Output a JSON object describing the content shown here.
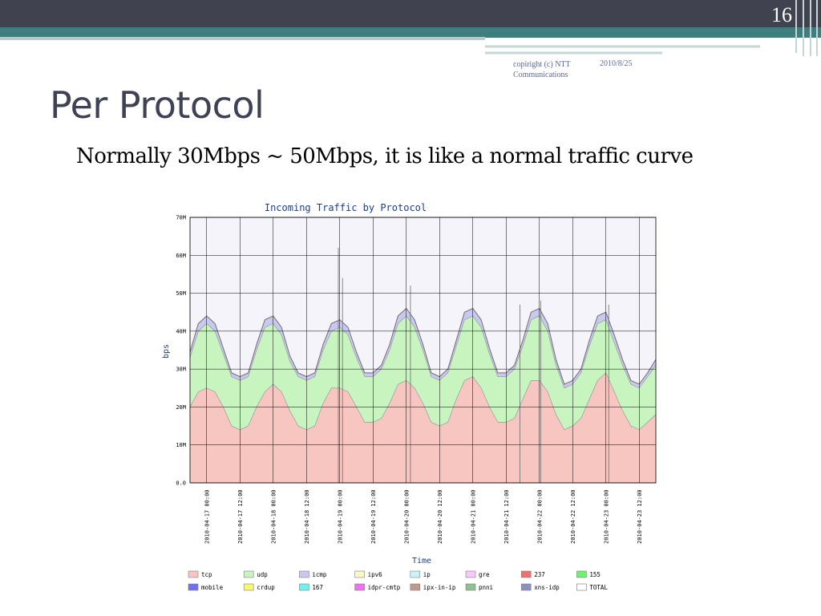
{
  "slide": {
    "number": "16",
    "copyright": "copiright (c) NTT Communications",
    "date": "2010/8/25",
    "title": "Per Protocol",
    "subtitle": "Normally 30Mbps ~ 50Mbps, it is like a normal traffic curve"
  },
  "colors": {
    "header_dark": "#41424f",
    "header_teal": "#3d7f7e",
    "title_text": "#3f4154"
  },
  "chart_data": {
    "type": "area",
    "title": "Incoming Traffic by Protocol",
    "xlabel": "Time",
    "ylabel": "bps",
    "stacked": true,
    "grid": true,
    "legend_position": "bottom",
    "xlim_hours": [
      0,
      168
    ],
    "ylim_mbps": [
      0,
      70
    ],
    "y_ticks": [
      {
        "value": 0,
        "label": "0.0"
      },
      {
        "value": 10,
        "label": "10M"
      },
      {
        "value": 20,
        "label": "20M"
      },
      {
        "value": 30,
        "label": "30M"
      },
      {
        "value": 40,
        "label": "40M"
      },
      {
        "value": 50,
        "label": "50M"
      },
      {
        "value": 60,
        "label": "60M"
      },
      {
        "value": 70,
        "label": "70M"
      }
    ],
    "x_ticks": [
      {
        "hour": 6,
        "label": "2010-04-17 00:00"
      },
      {
        "hour": 18,
        "label": "2010-04-17 12:00"
      },
      {
        "hour": 30,
        "label": "2010-04-18 00:00"
      },
      {
        "hour": 42,
        "label": "2010-04-18 12:00"
      },
      {
        "hour": 54,
        "label": "2010-04-19 00:00"
      },
      {
        "hour": 66,
        "label": "2010-04-19 12:00"
      },
      {
        "hour": 78,
        "label": "2010-04-20 00:00"
      },
      {
        "hour": 90,
        "label": "2010-04-20 12:00"
      },
      {
        "hour": 102,
        "label": "2010-04-21 00:00"
      },
      {
        "hour": 114,
        "label": "2010-04-21 12:00"
      },
      {
        "hour": 126,
        "label": "2010-04-22 00:00"
      },
      {
        "hour": 138,
        "label": "2010-04-22 12:00"
      },
      {
        "hour": 150,
        "label": "2010-04-23 00:00"
      },
      {
        "hour": 162,
        "label": "2010-04-23 12:00"
      }
    ],
    "x_hours": [
      0,
      3,
      6,
      9,
      12,
      15,
      18,
      21,
      24,
      27,
      30,
      33,
      36,
      39,
      42,
      45,
      48,
      51,
      54,
      57,
      60,
      63,
      66,
      69,
      72,
      75,
      78,
      81,
      84,
      87,
      90,
      93,
      96,
      99,
      102,
      105,
      108,
      111,
      114,
      117,
      120,
      123,
      126,
      129,
      132,
      135,
      138,
      141,
      144,
      147,
      150,
      153,
      156,
      159,
      162,
      165,
      168
    ],
    "series": [
      {
        "name": "tcp",
        "color": "#f8c6c0",
        "values": [
          20,
          24,
          25,
          24,
          20,
          15,
          14,
          15,
          20,
          24,
          26,
          24,
          19,
          15,
          14,
          15,
          21,
          25,
          25,
          24,
          20,
          16,
          16,
          17,
          21,
          26,
          27,
          25,
          21,
          16,
          15,
          16,
          22,
          27,
          28,
          25,
          20,
          16,
          16,
          17,
          22,
          27,
          27,
          24,
          18,
          14,
          15,
          17,
          22,
          27,
          29,
          24,
          19,
          15,
          14,
          16,
          18
        ]
      },
      {
        "name": "udp",
        "color": "#c8f4c0",
        "values": [
          13,
          16,
          17,
          16,
          14,
          13,
          13,
          13,
          15,
          17,
          16,
          15,
          13,
          13,
          13,
          13,
          14,
          15,
          16,
          15,
          13,
          12,
          12,
          13,
          14,
          16,
          17,
          16,
          14,
          12,
          12,
          13,
          14,
          16,
          16,
          16,
          14,
          12,
          12,
          13,
          14,
          16,
          17,
          16,
          13,
          11,
          11,
          12,
          14,
          15,
          14,
          13,
          12,
          11,
          11,
          12,
          13
        ]
      },
      {
        "name": "icmp",
        "color": "#c8c8f0",
        "values": [
          1.5,
          2,
          2,
          2,
          1.5,
          1,
          1,
          1,
          1.5,
          2,
          2,
          2,
          1.5,
          1,
          1,
          1,
          1.5,
          2,
          2,
          2,
          1.5,
          1,
          1,
          1,
          1.5,
          2,
          2,
          2,
          1.5,
          1,
          1,
          1,
          1.5,
          2,
          2,
          2,
          1.5,
          1,
          1,
          1,
          1.5,
          2,
          2,
          2,
          1.5,
          1,
          1,
          1,
          1.5,
          2,
          2,
          2,
          1.5,
          1,
          1,
          1,
          1.5
        ]
      },
      {
        "name": "ipv6",
        "color": "#f8f8c8",
        "values": []
      },
      {
        "name": "ip",
        "color": "#c8f4f8",
        "values": []
      },
      {
        "name": "gre",
        "color": "#f8c8f8",
        "values": []
      },
      {
        "name": "237",
        "color": "#f07070",
        "values": []
      },
      {
        "name": "155",
        "color": "#70f070",
        "values": []
      },
      {
        "name": "mobile",
        "color": "#7070f0",
        "values": []
      },
      {
        "name": "crdup",
        "color": "#f8f870",
        "values": []
      },
      {
        "name": "167",
        "color": "#70f0f0",
        "values": []
      },
      {
        "name": "idpr-cmtp",
        "color": "#f070f0",
        "values": []
      },
      {
        "name": "ipx-in-ip",
        "color": "#c09890",
        "values": []
      },
      {
        "name": "pnni",
        "color": "#90c090",
        "values": []
      },
      {
        "name": "xns-idp",
        "color": "#9090c0",
        "values": []
      },
      {
        "name": "TOTAL",
        "color": "#ffffff",
        "line_color": "#707070",
        "values": [
          34.5,
          42,
          44,
          42,
          35.5,
          29,
          28,
          29,
          36.5,
          43,
          44,
          41,
          33.5,
          29,
          28,
          29,
          36.5,
          42,
          43,
          41,
          34.5,
          29,
          29,
          31,
          36.5,
          44,
          46,
          43,
          36.5,
          29,
          28,
          30,
          37.5,
          45,
          46,
          43,
          35.5,
          29,
          29,
          31,
          37.5,
          45,
          46,
          42,
          32.5,
          26,
          27,
          30,
          37.5,
          44,
          45,
          39,
          32.5,
          27,
          26,
          29,
          32.5
        ]
      }
    ],
    "spikes": [
      {
        "hour": 53.5,
        "value": 62
      },
      {
        "hour": 55,
        "value": 54
      },
      {
        "hour": 79.5,
        "value": 52
      },
      {
        "hour": 119,
        "value": 47
      },
      {
        "hour": 126.5,
        "value": 48
      },
      {
        "hour": 151,
        "value": 47
      }
    ]
  }
}
